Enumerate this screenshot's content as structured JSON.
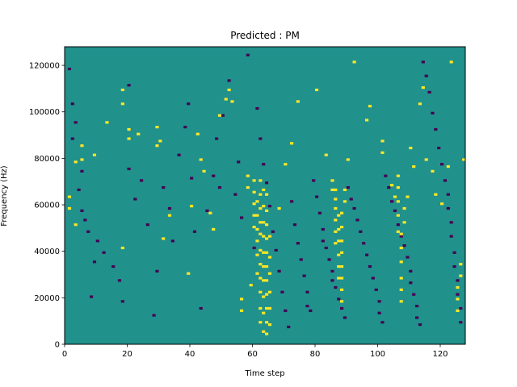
{
  "chart_data": {
    "type": "heatmap",
    "title": "Predicted : PM",
    "xlabel": "Time step",
    "ylabel": "Frequency (Hz)",
    "xlim": [
      0,
      128
    ],
    "ylim": [
      0,
      128000
    ],
    "x_ticks": [
      0,
      20,
      40,
      60,
      80,
      100,
      120
    ],
    "y_ticks": [
      0,
      20000,
      40000,
      60000,
      80000,
      100000,
      120000
    ],
    "n_time_steps": 128,
    "n_freq_bins": 128,
    "colors": {
      "background": "#21918c",
      "high": "#fde725",
      "low": "#440154"
    },
    "high_cells": [
      [
        1,
        58
      ],
      [
        1,
        63
      ],
      [
        3,
        51
      ],
      [
        3,
        78
      ],
      [
        5,
        79
      ],
      [
        5,
        85
      ],
      [
        9,
        81
      ],
      [
        13,
        95
      ],
      [
        18,
        41
      ],
      [
        18,
        109
      ],
      [
        18,
        103
      ],
      [
        20,
        88
      ],
      [
        20,
        92
      ],
      [
        23,
        90
      ],
      [
        29,
        85
      ],
      [
        29,
        93
      ],
      [
        30,
        87
      ],
      [
        31,
        45
      ],
      [
        33,
        55
      ],
      [
        39,
        30
      ],
      [
        40,
        59
      ],
      [
        42,
        90
      ],
      [
        43,
        79
      ],
      [
        44,
        74
      ],
      [
        46,
        56
      ],
      [
        47,
        49
      ],
      [
        49,
        98
      ],
      [
        51,
        105
      ],
      [
        52,
        109
      ],
      [
        53,
        104
      ],
      [
        56,
        14
      ],
      [
        56,
        19
      ],
      [
        58,
        67
      ],
      [
        58,
        72
      ],
      [
        59,
        25
      ],
      [
        60,
        50
      ],
      [
        60,
        55
      ],
      [
        60,
        60
      ],
      [
        60,
        65
      ],
      [
        60,
        70
      ],
      [
        61,
        30
      ],
      [
        61,
        38
      ],
      [
        61,
        44
      ],
      [
        61,
        49
      ],
      [
        61,
        55
      ],
      [
        61,
        61
      ],
      [
        62,
        9
      ],
      [
        62,
        15
      ],
      [
        62,
        22
      ],
      [
        62,
        28
      ],
      [
        62,
        34
      ],
      [
        62,
        40
      ],
      [
        62,
        47
      ],
      [
        62,
        52
      ],
      [
        62,
        58
      ],
      [
        62,
        64
      ],
      [
        62,
        70
      ],
      [
        63,
        5
      ],
      [
        63,
        13
      ],
      [
        63,
        20
      ],
      [
        63,
        27
      ],
      [
        63,
        33
      ],
      [
        63,
        39
      ],
      [
        63,
        46
      ],
      [
        63,
        52
      ],
      [
        63,
        59
      ],
      [
        63,
        66
      ],
      [
        64,
        4
      ],
      [
        64,
        9
      ],
      [
        64,
        15
      ],
      [
        64,
        21
      ],
      [
        64,
        27
      ],
      [
        64,
        33
      ],
      [
        64,
        39
      ],
      [
        64,
        45
      ],
      [
        64,
        51
      ],
      [
        64,
        57
      ],
      [
        64,
        64
      ],
      [
        65,
        8
      ],
      [
        65,
        15
      ],
      [
        65,
        22
      ],
      [
        65,
        30
      ],
      [
        65,
        37
      ],
      [
        65,
        46
      ],
      [
        68,
        58
      ],
      [
        70,
        77
      ],
      [
        72,
        86
      ],
      [
        74,
        104
      ],
      [
        80,
        109
      ],
      [
        83,
        81
      ],
      [
        85,
        66
      ],
      [
        85,
        70
      ],
      [
        86,
        58
      ],
      [
        86,
        62
      ],
      [
        86,
        66
      ],
      [
        86,
        43
      ],
      [
        86,
        48
      ],
      [
        86,
        53
      ],
      [
        87,
        28
      ],
      [
        87,
        33
      ],
      [
        87,
        38
      ],
      [
        87,
        44
      ],
      [
        87,
        49
      ],
      [
        87,
        55
      ],
      [
        88,
        18
      ],
      [
        88,
        23
      ],
      [
        88,
        28
      ],
      [
        88,
        33
      ],
      [
        88,
        39
      ],
      [
        88,
        44
      ],
      [
        88,
        50
      ],
      [
        88,
        56
      ],
      [
        89,
        61
      ],
      [
        89,
        66
      ],
      [
        90,
        79
      ],
      [
        92,
        121
      ],
      [
        96,
        96
      ],
      [
        97,
        102
      ],
      [
        101,
        82
      ],
      [
        101,
        87
      ],
      [
        104,
        68
      ],
      [
        105,
        63
      ],
      [
        106,
        48
      ],
      [
        106,
        55
      ],
      [
        106,
        61
      ],
      [
        106,
        67
      ],
      [
        106,
        72
      ],
      [
        107,
        18
      ],
      [
        107,
        23
      ],
      [
        107,
        28
      ],
      [
        107,
        35
      ],
      [
        107,
        41
      ],
      [
        107,
        47
      ],
      [
        108,
        52
      ],
      [
        108,
        58
      ],
      [
        109,
        63
      ],
      [
        110,
        84
      ],
      [
        111,
        76
      ],
      [
        113,
        103
      ],
      [
        114,
        110
      ],
      [
        115,
        79
      ],
      [
        117,
        74
      ],
      [
        118,
        64
      ],
      [
        120,
        60
      ],
      [
        122,
        76
      ],
      [
        123,
        121
      ],
      [
        125,
        14
      ],
      [
        125,
        19
      ],
      [
        125,
        24
      ],
      [
        126,
        29
      ],
      [
        126,
        34
      ],
      [
        127,
        79
      ]
    ],
    "low_cells": [
      [
        1,
        118
      ],
      [
        2,
        88
      ],
      [
        2,
        103
      ],
      [
        3,
        95
      ],
      [
        4,
        66
      ],
      [
        5,
        74
      ],
      [
        5,
        57
      ],
      [
        6,
        53
      ],
      [
        7,
        48
      ],
      [
        8,
        20
      ],
      [
        9,
        35
      ],
      [
        10,
        44
      ],
      [
        12,
        39
      ],
      [
        15,
        33
      ],
      [
        17,
        27
      ],
      [
        18,
        18
      ],
      [
        20,
        111
      ],
      [
        20,
        75
      ],
      [
        22,
        62
      ],
      [
        24,
        70
      ],
      [
        26,
        51
      ],
      [
        28,
        12
      ],
      [
        29,
        31
      ],
      [
        31,
        67
      ],
      [
        33,
        58
      ],
      [
        34,
        44
      ],
      [
        36,
        81
      ],
      [
        38,
        93
      ],
      [
        39,
        103
      ],
      [
        40,
        71
      ],
      [
        41,
        48
      ],
      [
        43,
        15
      ],
      [
        45,
        57
      ],
      [
        47,
        72
      ],
      [
        48,
        88
      ],
      [
        49,
        67
      ],
      [
        50,
        98
      ],
      [
        52,
        113
      ],
      [
        54,
        64
      ],
      [
        55,
        78
      ],
      [
        56,
        54
      ],
      [
        58,
        124
      ],
      [
        60,
        41
      ],
      [
        61,
        101
      ],
      [
        62,
        88
      ],
      [
        63,
        77
      ],
      [
        64,
        69
      ],
      [
        65,
        59
      ],
      [
        66,
        48
      ],
      [
        67,
        40
      ],
      [
        68,
        31
      ],
      [
        69,
        22
      ],
      [
        70,
        14
      ],
      [
        71,
        7
      ],
      [
        72,
        61
      ],
      [
        73,
        51
      ],
      [
        74,
        43
      ],
      [
        75,
        36
      ],
      [
        76,
        29
      ],
      [
        77,
        22
      ],
      [
        77,
        16
      ],
      [
        78,
        14
      ],
      [
        79,
        70
      ],
      [
        80,
        63
      ],
      [
        81,
        56
      ],
      [
        82,
        49
      ],
      [
        82,
        44
      ],
      [
        83,
        41
      ],
      [
        84,
        36
      ],
      [
        85,
        31
      ],
      [
        85,
        27
      ],
      [
        86,
        24
      ],
      [
        87,
        19
      ],
      [
        88,
        15
      ],
      [
        89,
        11
      ],
      [
        90,
        67
      ],
      [
        91,
        62
      ],
      [
        92,
        58
      ],
      [
        93,
        53
      ],
      [
        94,
        48
      ],
      [
        95,
        43
      ],
      [
        96,
        38
      ],
      [
        97,
        33
      ],
      [
        98,
        28
      ],
      [
        99,
        23
      ],
      [
        100,
        18
      ],
      [
        100,
        13
      ],
      [
        101,
        9
      ],
      [
        102,
        72
      ],
      [
        103,
        67
      ],
      [
        104,
        61
      ],
      [
        105,
        57
      ],
      [
        106,
        51
      ],
      [
        107,
        46
      ],
      [
        108,
        42
      ],
      [
        109,
        37
      ],
      [
        110,
        31
      ],
      [
        110,
        26
      ],
      [
        111,
        21
      ],
      [
        112,
        16
      ],
      [
        112,
        11
      ],
      [
        113,
        8
      ],
      [
        114,
        121
      ],
      [
        115,
        115
      ],
      [
        116,
        108
      ],
      [
        117,
        99
      ],
      [
        118,
        92
      ],
      [
        119,
        84
      ],
      [
        120,
        77
      ],
      [
        121,
        70
      ],
      [
        122,
        64
      ],
      [
        122,
        58
      ],
      [
        123,
        52
      ],
      [
        123,
        46
      ],
      [
        124,
        39
      ],
      [
        124,
        33
      ],
      [
        125,
        27
      ],
      [
        125,
        21
      ],
      [
        126,
        15
      ],
      [
        126,
        9
      ]
    ]
  }
}
